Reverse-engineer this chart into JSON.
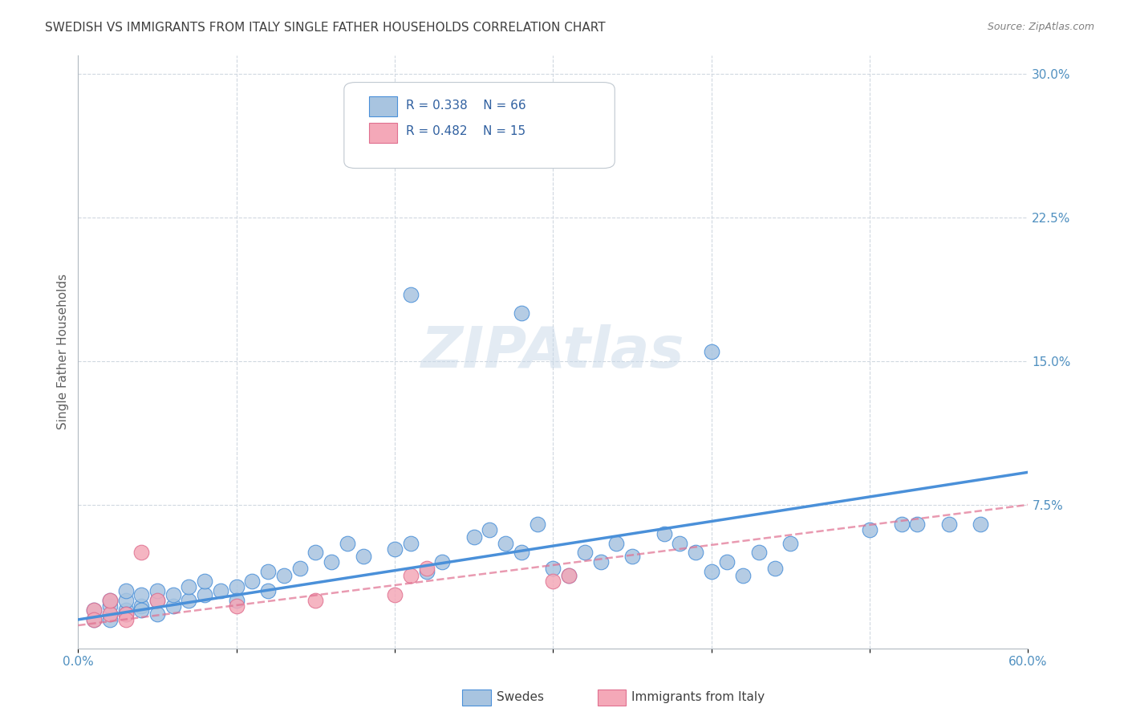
{
  "title": "SWEDISH VS IMMIGRANTS FROM ITALY SINGLE FATHER HOUSEHOLDS CORRELATION CHART",
  "source": "Source: ZipAtlas.com",
  "xlabel": "",
  "ylabel": "Single Father Households",
  "xlim": [
    0.0,
    0.6
  ],
  "ylim": [
    0.0,
    0.31
  ],
  "xticks": [
    0.0,
    0.1,
    0.2,
    0.3,
    0.4,
    0.5,
    0.6
  ],
  "xticklabels": [
    "0.0%",
    "",
    "",
    "",
    "",
    "",
    "60.0%"
  ],
  "ytick_positions": [
    0.0,
    0.075,
    0.15,
    0.225,
    0.3
  ],
  "ytick_labels": [
    "",
    "7.5%",
    "15.0%",
    "22.5%",
    "30.0%"
  ],
  "blue_color": "#a8c4e0",
  "blue_dark": "#4a90d9",
  "pink_color": "#f4a8b8",
  "pink_dark": "#e07090",
  "legend_r1": "R = 0.338",
  "legend_n1": "N = 66",
  "legend_r2": "R = 0.482",
  "legend_n2": "N = 15",
  "watermark": "ZIPAtlas",
  "blue_scatter_x": [
    0.01,
    0.01,
    0.02,
    0.02,
    0.02,
    0.02,
    0.03,
    0.03,
    0.03,
    0.03,
    0.04,
    0.04,
    0.04,
    0.05,
    0.05,
    0.05,
    0.06,
    0.06,
    0.07,
    0.07,
    0.08,
    0.08,
    0.09,
    0.1,
    0.1,
    0.11,
    0.12,
    0.12,
    0.13,
    0.14,
    0.15,
    0.16,
    0.17,
    0.18,
    0.2,
    0.21,
    0.22,
    0.23,
    0.25,
    0.26,
    0.27,
    0.28,
    0.29,
    0.3,
    0.31,
    0.32,
    0.33,
    0.34,
    0.35,
    0.37,
    0.38,
    0.39,
    0.4,
    0.41,
    0.42,
    0.43,
    0.44,
    0.45,
    0.5,
    0.52,
    0.53,
    0.55,
    0.57,
    0.28,
    0.21,
    0.4
  ],
  "blue_scatter_y": [
    0.02,
    0.015,
    0.018,
    0.022,
    0.025,
    0.015,
    0.02,
    0.025,
    0.03,
    0.018,
    0.022,
    0.028,
    0.02,
    0.025,
    0.03,
    0.018,
    0.022,
    0.028,
    0.025,
    0.032,
    0.028,
    0.035,
    0.03,
    0.032,
    0.025,
    0.035,
    0.04,
    0.03,
    0.038,
    0.042,
    0.05,
    0.045,
    0.055,
    0.048,
    0.052,
    0.055,
    0.04,
    0.045,
    0.058,
    0.062,
    0.055,
    0.05,
    0.065,
    0.042,
    0.038,
    0.05,
    0.045,
    0.055,
    0.048,
    0.06,
    0.055,
    0.05,
    0.04,
    0.045,
    0.038,
    0.05,
    0.042,
    0.055,
    0.062,
    0.065,
    0.065,
    0.065,
    0.065,
    0.175,
    0.185,
    0.155
  ],
  "pink_scatter_x": [
    0.01,
    0.01,
    0.02,
    0.02,
    0.03,
    0.03,
    0.04,
    0.05,
    0.1,
    0.15,
    0.2,
    0.21,
    0.22,
    0.3,
    0.31
  ],
  "pink_scatter_y": [
    0.02,
    0.015,
    0.018,
    0.025,
    0.018,
    0.015,
    0.05,
    0.025,
    0.022,
    0.025,
    0.028,
    0.038,
    0.042,
    0.035,
    0.038
  ],
  "blue_line_x": [
    0.0,
    0.6
  ],
  "blue_line_y": [
    0.015,
    0.092
  ],
  "pink_line_x": [
    0.0,
    0.6
  ],
  "pink_line_y": [
    0.012,
    0.075
  ],
  "grid_color": "#d0d8e0",
  "bg_color": "#ffffff",
  "title_color": "#404040",
  "axis_label_color": "#5090c0",
  "tick_color": "#5090c0"
}
